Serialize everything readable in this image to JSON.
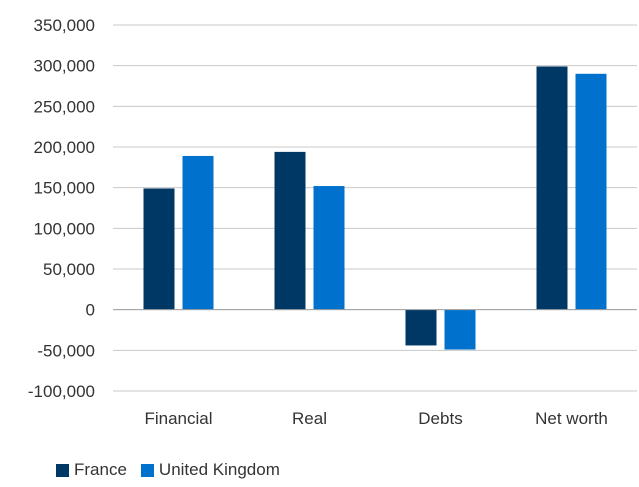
{
  "chart_data": {
    "type": "bar",
    "title": "",
    "xlabel": "",
    "ylabel": "",
    "categories": [
      "Financial",
      "Real",
      "Debts",
      "Net worth"
    ],
    "series": [
      {
        "name": "France",
        "color": "#003865",
        "values": [
          149000,
          194000,
          -44000,
          299000
        ]
      },
      {
        "name": "United Kingdom",
        "color": "#0072CE",
        "values": [
          189000,
          152000,
          -49000,
          290000
        ]
      }
    ],
    "ylim": [
      -100000,
      350000
    ],
    "yticks": [
      350000,
      300000,
      250000,
      200000,
      150000,
      100000,
      50000,
      0,
      -50000,
      -100000
    ],
    "ytick_labels": [
      "350,000",
      "300,000",
      "250,000",
      "200,000",
      "150,000",
      "100,000",
      "50,000",
      "0",
      "-50,000",
      "-100,000"
    ],
    "grid": true,
    "legend_position": "bottom-left"
  }
}
